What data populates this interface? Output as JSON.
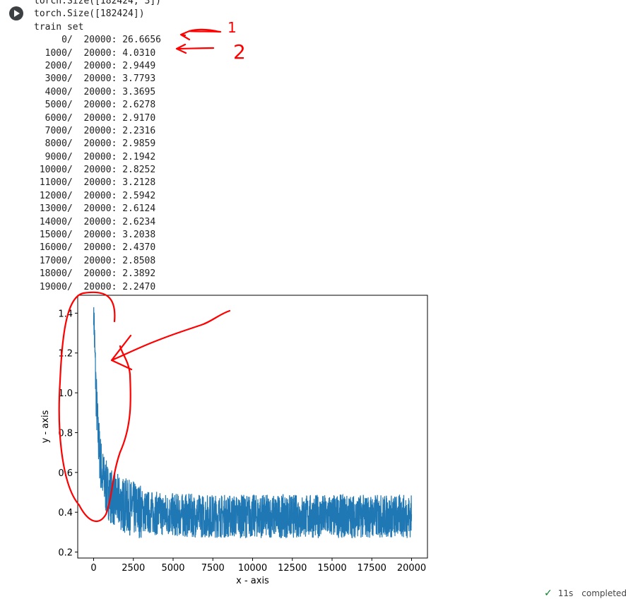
{
  "output": {
    "lines": [
      "torch.Size([182424, 3])",
      "torch.Size([182424])",
      "train set"
    ],
    "log": [
      "     0/  20000: 26.6656",
      "  1000/  20000: 4.0310",
      "  2000/  20000: 2.9449",
      "  3000/  20000: 3.7793",
      "  4000/  20000: 3.3695",
      "  5000/  20000: 2.6278",
      "  6000/  20000: 2.9170",
      "  7000/  20000: 2.2316",
      "  8000/  20000: 2.9859",
      "  9000/  20000: 2.1942",
      " 10000/  20000: 2.8252",
      " 11000/  20000: 3.2128",
      " 12000/  20000: 2.5942",
      " 13000/  20000: 2.6124",
      " 14000/  20000: 2.6234",
      " 15000/  20000: 3.2038",
      " 16000/  20000: 2.4370",
      " 17000/  20000: 2.8508",
      " 18000/  20000: 2.3892",
      " 19000/  20000: 2.2470"
    ]
  },
  "chart_data": {
    "type": "line",
    "xlabel": "x - axis",
    "ylabel": "y - axis",
    "xlim": [
      -1000,
      21000
    ],
    "ylim": [
      0.17,
      1.49
    ],
    "xticks": [
      0,
      2500,
      5000,
      7500,
      10000,
      12500,
      15000,
      17500,
      20000
    ],
    "yticks": [
      0.2,
      0.4,
      0.6,
      0.8,
      1.0,
      1.2,
      1.4
    ],
    "ytick_labels": [
      "0.2",
      "0.4",
      "0.6",
      "0.8",
      "1.0",
      "1.2",
      "1.4"
    ],
    "series": [
      {
        "color": "#1f77b4",
        "x": [
          0,
          20000
        ],
        "y": [
          1.43,
          0.38
        ],
        "points": [
          [
            0,
            1.43
          ],
          [
            50,
            1.05
          ],
          [
            100,
            1.25
          ],
          [
            150,
            0.95
          ],
          [
            200,
            1.1
          ],
          [
            250,
            0.85
          ],
          [
            300,
            1.03
          ],
          [
            350,
            0.8
          ],
          [
            400,
            0.95
          ],
          [
            450,
            0.74
          ],
          [
            500,
            0.86
          ],
          [
            600,
            0.65
          ],
          [
            700,
            0.78
          ],
          [
            800,
            0.58
          ],
          [
            900,
            0.72
          ],
          [
            1000,
            0.52
          ],
          [
            1200,
            0.69
          ],
          [
            1400,
            0.48
          ],
          [
            1600,
            0.66
          ],
          [
            1800,
            0.44
          ],
          [
            2000,
            0.64
          ],
          [
            2500,
            0.34
          ],
          [
            3000,
            0.62
          ],
          [
            3500,
            0.32
          ],
          [
            4000,
            0.58
          ],
          [
            5000,
            0.3
          ],
          [
            6000,
            0.58
          ],
          [
            7000,
            0.31
          ],
          [
            7500,
            0.61
          ],
          [
            8000,
            0.3
          ],
          [
            9000,
            0.56
          ],
          [
            10000,
            0.28
          ],
          [
            10500,
            0.56
          ],
          [
            11000,
            0.23
          ],
          [
            12000,
            0.55
          ],
          [
            12500,
            0.28
          ],
          [
            13000,
            0.56
          ],
          [
            14000,
            0.27
          ],
          [
            15000,
            0.55
          ],
          [
            16000,
            0.27
          ],
          [
            16500,
            0.55
          ],
          [
            17500,
            0.26
          ],
          [
            18000,
            0.55
          ],
          [
            19000,
            0.25
          ],
          [
            19500,
            0.53
          ],
          [
            20000,
            0.3
          ]
        ]
      }
    ]
  },
  "annotations": {
    "label_1": "1",
    "label_2": "2",
    "color": "#ff0000"
  },
  "status": {
    "icon": "check-icon",
    "time": "11s",
    "text": "completed"
  }
}
